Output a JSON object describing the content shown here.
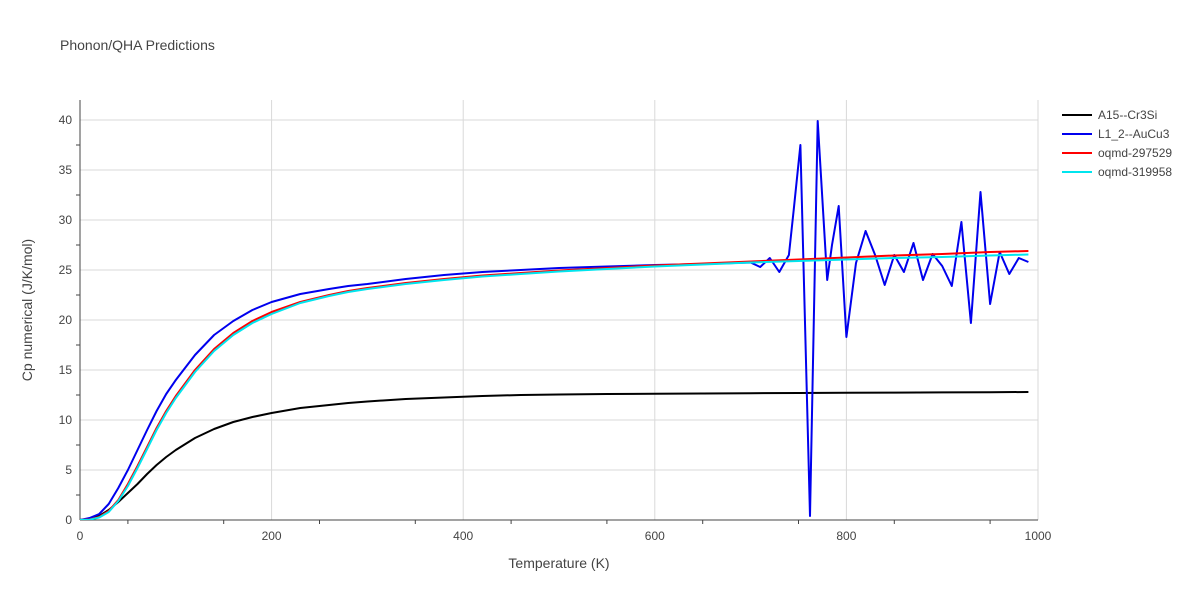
{
  "chart_data": {
    "type": "line",
    "title": "Phonon/QHA Predictions",
    "xlabel": "Temperature (K)",
    "ylabel": "Cp numerical (J/K/mol)",
    "xlim": [
      0,
      1000
    ],
    "ylim": [
      0,
      42
    ],
    "xticks": [
      0,
      200,
      400,
      600,
      800,
      1000
    ],
    "yticks": [
      0,
      5,
      10,
      15,
      20,
      25,
      30,
      35,
      40
    ],
    "grid": true,
    "legend_position": "top-right",
    "series": [
      {
        "name": "A15--Cr3Si",
        "color": "#000000",
        "x": [
          0,
          10,
          20,
          30,
          40,
          50,
          60,
          70,
          80,
          90,
          100,
          120,
          140,
          160,
          180,
          200,
          230,
          260,
          280,
          300,
          340,
          380,
          420,
          460,
          500,
          550,
          600,
          650,
          700,
          750,
          800,
          850,
          900,
          950,
          990
        ],
        "y": [
          0,
          0.1,
          0.4,
          1.0,
          1.8,
          2.7,
          3.6,
          4.6,
          5.5,
          6.3,
          7.0,
          8.2,
          9.1,
          9.8,
          10.3,
          10.7,
          11.2,
          11.5,
          11.7,
          11.85,
          12.1,
          12.25,
          12.4,
          12.5,
          12.55,
          12.6,
          12.62,
          12.65,
          12.68,
          12.7,
          12.72,
          12.74,
          12.76,
          12.78,
          12.8
        ]
      },
      {
        "name": "L1_2--AuCu3",
        "color": "#0000ee",
        "x": [
          0,
          10,
          20,
          30,
          40,
          50,
          60,
          70,
          80,
          90,
          100,
          120,
          140,
          160,
          180,
          200,
          230,
          260,
          280,
          300,
          340,
          380,
          420,
          460,
          500,
          550,
          600,
          650,
          700,
          710,
          720,
          730,
          740,
          745,
          752,
          762,
          770,
          780,
          785,
          792,
          800,
          810,
          820,
          830,
          840,
          850,
          860,
          870,
          880,
          890,
          900,
          910,
          920,
          930,
          940,
          950,
          960,
          970,
          980,
          990
        ],
        "y": [
          0,
          0.2,
          0.6,
          1.6,
          3.2,
          5.0,
          7.0,
          9.0,
          10.9,
          12.6,
          14.0,
          16.5,
          18.5,
          19.9,
          21.0,
          21.8,
          22.6,
          23.1,
          23.4,
          23.6,
          24.1,
          24.5,
          24.8,
          25.0,
          25.2,
          25.35,
          25.5,
          25.6,
          25.75,
          25.3,
          26.2,
          24.8,
          26.5,
          31.0,
          37.5,
          0.4,
          39.9,
          24.0,
          27.5,
          31.4,
          18.3,
          25.7,
          28.9,
          26.5,
          23.5,
          26.5,
          24.8,
          27.7,
          24.0,
          26.6,
          25.4,
          23.4,
          29.8,
          19.7,
          32.8,
          21.6,
          26.8,
          24.6,
          26.2,
          25.8
        ]
      },
      {
        "name": "oqmd-297529",
        "color": "#ff0000",
        "x": [
          0,
          10,
          20,
          30,
          40,
          50,
          60,
          70,
          80,
          90,
          100,
          120,
          140,
          160,
          180,
          200,
          230,
          260,
          280,
          300,
          340,
          380,
          420,
          460,
          500,
          550,
          600,
          650,
          700,
          750,
          800,
          850,
          900,
          950,
          990
        ],
        "y": [
          0,
          0.05,
          0.3,
          0.9,
          2.0,
          3.6,
          5.4,
          7.3,
          9.2,
          10.9,
          12.4,
          15.0,
          17.1,
          18.7,
          19.9,
          20.8,
          21.8,
          22.5,
          22.9,
          23.2,
          23.7,
          24.1,
          24.45,
          24.7,
          24.95,
          25.2,
          25.45,
          25.65,
          25.85,
          26.05,
          26.25,
          26.45,
          26.6,
          26.8,
          26.9
        ]
      },
      {
        "name": "oqmd-319958",
        "color": "#00e5ee",
        "x": [
          0,
          10,
          20,
          30,
          40,
          50,
          60,
          70,
          80,
          90,
          100,
          120,
          140,
          160,
          180,
          200,
          230,
          260,
          280,
          300,
          340,
          380,
          420,
          460,
          500,
          550,
          600,
          650,
          700,
          750,
          800,
          850,
          900,
          950,
          990
        ],
        "y": [
          0,
          0.03,
          0.25,
          0.8,
          1.9,
          3.4,
          5.2,
          7.1,
          9.0,
          10.7,
          12.2,
          14.8,
          16.9,
          18.5,
          19.7,
          20.6,
          21.7,
          22.4,
          22.8,
          23.1,
          23.6,
          24.0,
          24.35,
          24.6,
          24.85,
          25.1,
          25.35,
          25.55,
          25.75,
          25.9,
          26.05,
          26.2,
          26.3,
          26.45,
          26.55
        ]
      }
    ]
  }
}
